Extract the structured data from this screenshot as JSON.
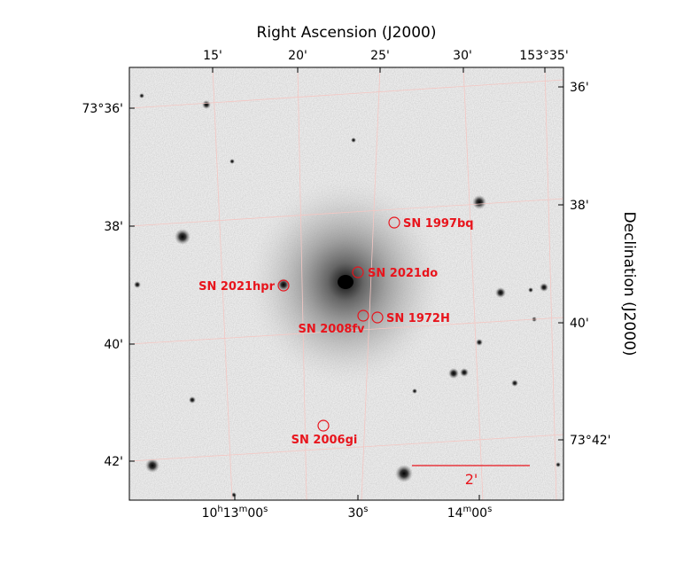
{
  "axes": {
    "top_title": "Right Ascension (J2000)",
    "right_title": "Declination (J2000)",
    "top_ticks": [
      "15'",
      "20'",
      "25'",
      "30'",
      "153°35'"
    ],
    "bottom_ticks": [
      {
        "main": "10",
        "sup1": "h",
        "mid": "13",
        "sup2": "m",
        "tail": "00",
        "sup3": "s"
      },
      {
        "main": "30",
        "sup3": "s"
      },
      {
        "main": "14",
        "sup2": "m",
        "tail": "00",
        "sup3": "s"
      }
    ],
    "left_ticks": [
      "73°36'",
      "38'",
      "40'",
      "42'"
    ],
    "right_ticks": [
      "36'",
      "38'",
      "40'",
      "73°42'"
    ]
  },
  "supernovae": [
    {
      "name": "SN 1997bq"
    },
    {
      "name": "SN 2021do"
    },
    {
      "name": "SN 2021hpr"
    },
    {
      "name": "SN 2008fv"
    },
    {
      "name": "SN 1972H"
    },
    {
      "name": "SN 2006gi"
    }
  ],
  "scale_bar": {
    "label": "2'"
  },
  "colors": {
    "annotation": "#e8141c",
    "grid": "#f4c7c3",
    "image_background": "#ebebeb",
    "frame": "#000000"
  }
}
